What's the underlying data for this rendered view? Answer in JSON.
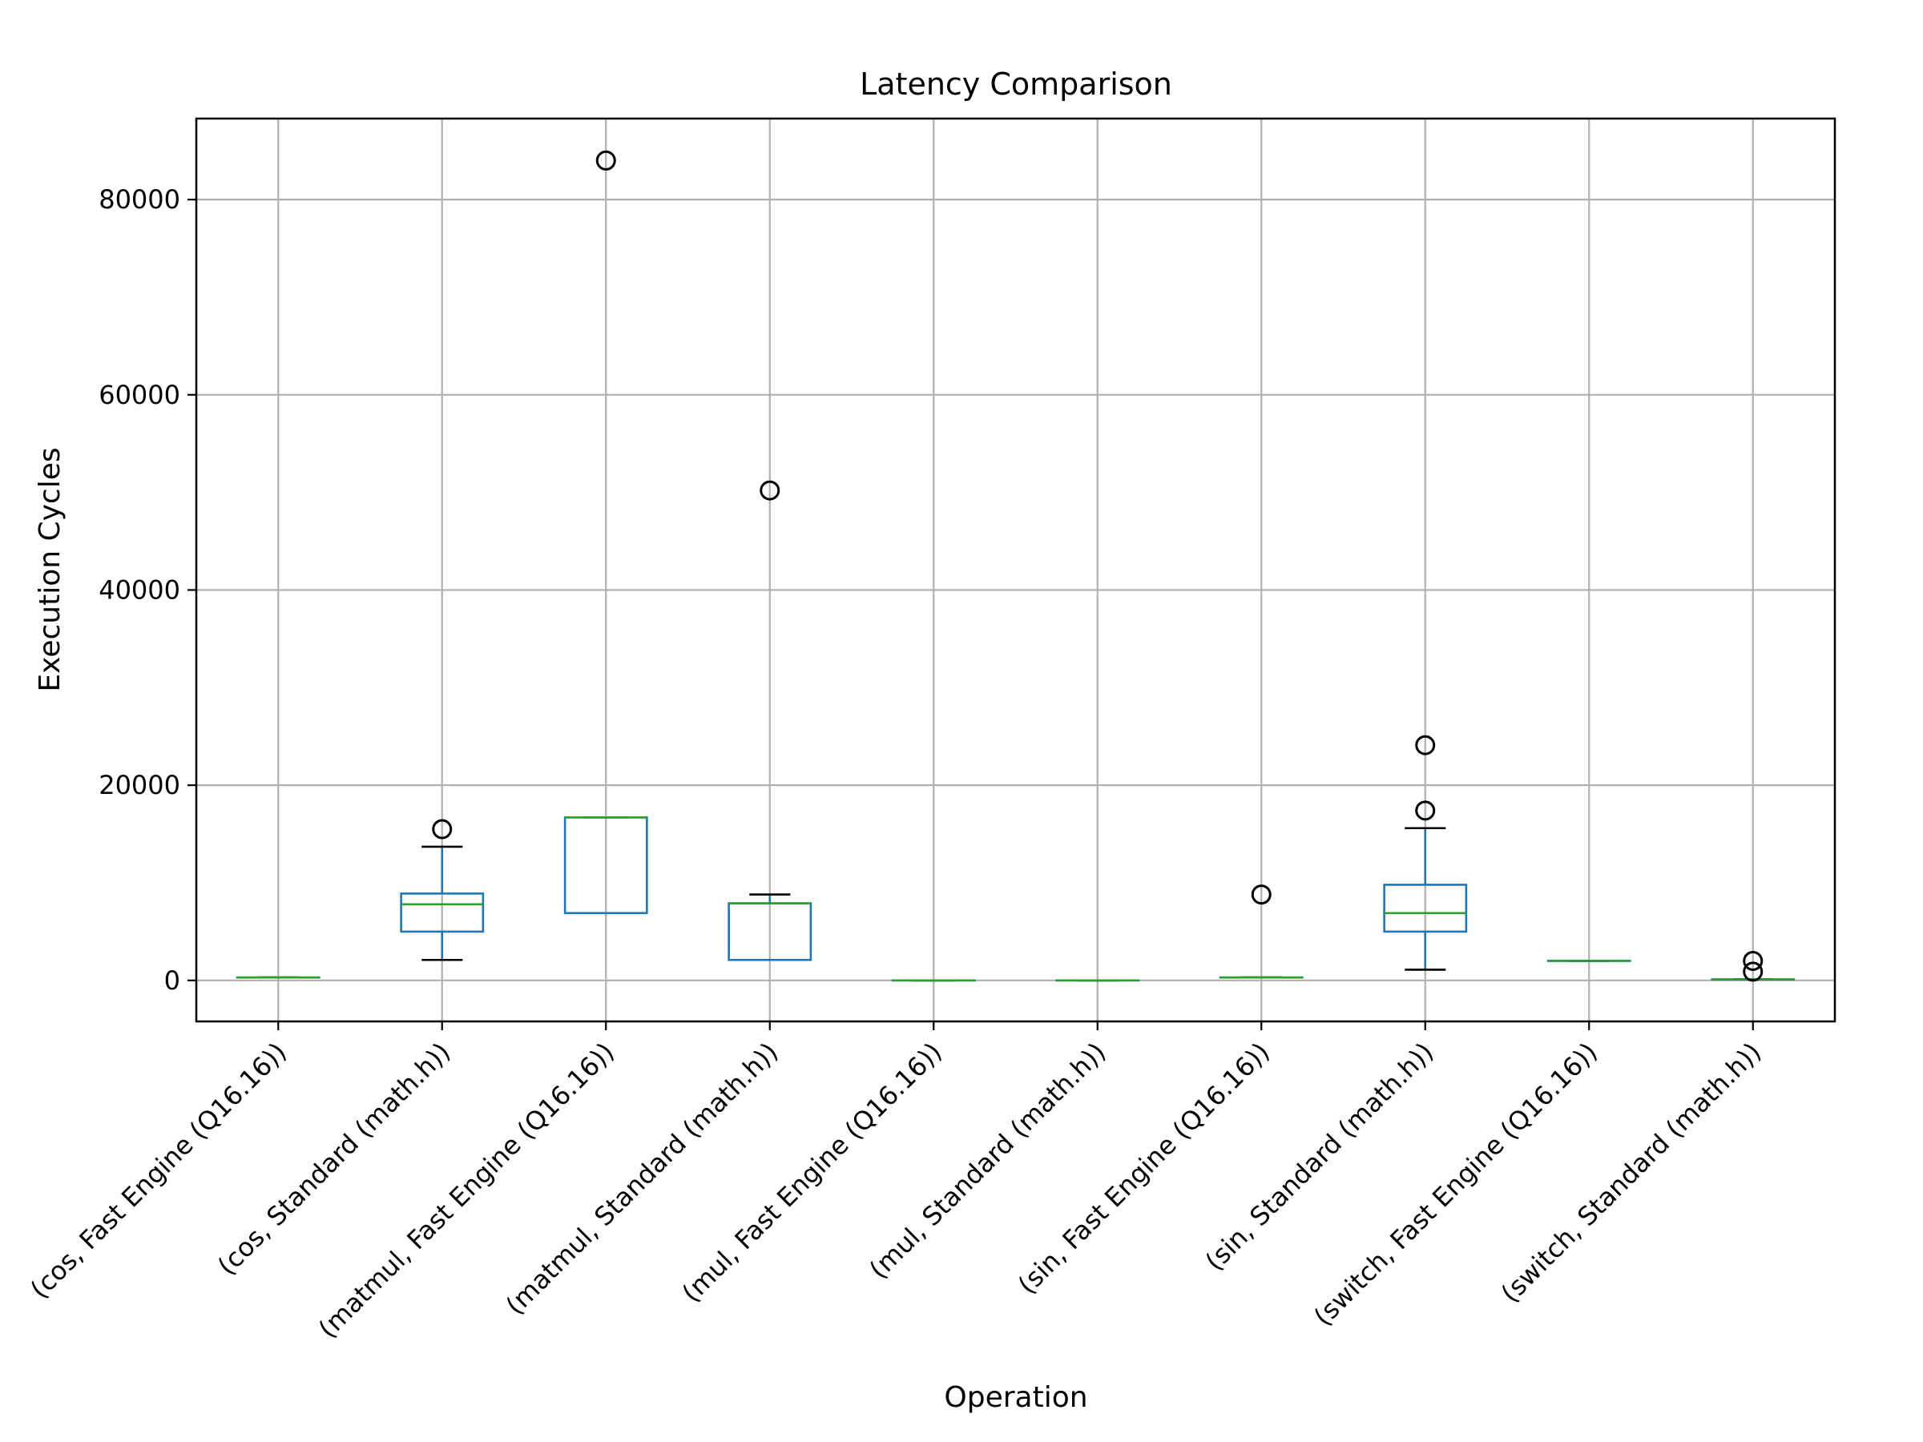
{
  "chart_data": {
    "type": "box",
    "title": "Latency Comparison",
    "xlabel": "Operation",
    "ylabel": "Execution Cycles",
    "ylim": [
      -4200,
      88300
    ],
    "yticks": [
      0,
      20000,
      40000,
      60000,
      80000
    ],
    "ytick_labels": [
      "0",
      "20000",
      "40000",
      "60000",
      "80000"
    ],
    "grid": true,
    "colors": {
      "box": "#1f77b4",
      "median": "#2ca02c",
      "whisker_cap": "#000000",
      "flier": "#000000",
      "grid": "#b0b0b0"
    },
    "categories": [
      "(cos, Fast Engine (Q16.16))",
      "(cos, Standard (math.h))",
      "(matmul, Fast Engine (Q16.16))",
      "(matmul, Standard (math.h))",
      "(mul, Fast Engine (Q16.16))",
      "(mul, Standard (math.h))",
      "(sin, Fast Engine (Q16.16))",
      "(sin, Standard (math.h))",
      "(switch, Fast Engine (Q16.16))",
      "(switch, Standard (math.h))"
    ],
    "boxes": [
      {
        "whislo": 300,
        "q1": 300,
        "med": 300,
        "q3": 300,
        "whishi": 300,
        "fliers": []
      },
      {
        "whislo": 2100,
        "q1": 5000,
        "med": 7800,
        "q3": 8900,
        "whishi": 13700,
        "fliers": [
          15500
        ]
      },
      {
        "whislo": 6900,
        "q1": 6900,
        "med": 16700,
        "q3": 16700,
        "whishi": 16700,
        "fliers": [
          84000
        ]
      },
      {
        "whislo": 2100,
        "q1": 2100,
        "med": 7900,
        "q3": 7900,
        "whishi": 8800,
        "fliers": [
          50200
        ]
      },
      {
        "whislo": 0,
        "q1": 0,
        "med": 0,
        "q3": 0,
        "whishi": 0,
        "fliers": []
      },
      {
        "whislo": 0,
        "q1": 0,
        "med": 0,
        "q3": 0,
        "whishi": 0,
        "fliers": []
      },
      {
        "whislo": 300,
        "q1": 300,
        "med": 300,
        "q3": 300,
        "whishi": 300,
        "fliers": [
          8800
        ]
      },
      {
        "whislo": 1100,
        "q1": 5000,
        "med": 6900,
        "q3": 9800,
        "whishi": 15600,
        "fliers": [
          17400,
          24100
        ]
      },
      {
        "whislo": 2000,
        "q1": 2000,
        "med": 2000,
        "q3": 2000,
        "whishi": 2000,
        "fliers": []
      },
      {
        "whislo": 100,
        "q1": 100,
        "med": 100,
        "q3": 100,
        "whishi": 100,
        "fliers": [
          900,
          2000
        ]
      }
    ]
  }
}
